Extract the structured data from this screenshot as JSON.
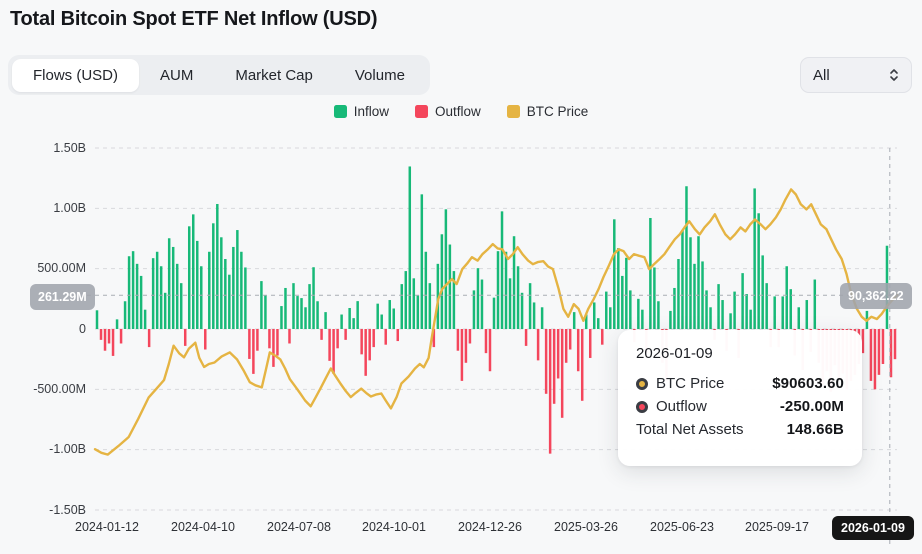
{
  "header": {
    "title": "Total Bitcoin Spot ETF Net Inflow (USD)"
  },
  "tabs": [
    {
      "label": "Flows (USD)",
      "active": true
    },
    {
      "label": "AUM",
      "active": false
    },
    {
      "label": "Market Cap",
      "active": false
    },
    {
      "label": "Volume",
      "active": false
    }
  ],
  "range_select": {
    "value": "All"
  },
  "legend": [
    {
      "label": "Inflow",
      "color": "#17b978"
    },
    {
      "label": "Outflow",
      "color": "#f4465c"
    },
    {
      "label": "BTC Price",
      "color": "#e5b443"
    }
  ],
  "crosshair_badges": {
    "flow_value": "261.29M",
    "price_value": "90,362.22"
  },
  "tooltip": {
    "date": "2026-01-09",
    "rows": [
      {
        "label": "BTC Price",
        "value": "$90603.60",
        "marker_color": "#e5b443"
      },
      {
        "label": "Outflow",
        "value": "-250.00M",
        "marker_color": "#f4465c"
      }
    ],
    "total_label": "Total Net Assets",
    "total_value": "148.66B"
  },
  "chart_data": {
    "type": "bar+line",
    "title": "Total Bitcoin Spot ETF Net Inflow (USD)",
    "legend_position": "top-center",
    "grid": "dashed-horizontal",
    "y_ticks": [
      "1.50B",
      "1.00B",
      "500.00M",
      "0",
      "-500.00M",
      "-1.00B",
      "-1.50B"
    ],
    "ylim_millions": [
      -1500,
      1500
    ],
    "x_ticks": [
      "2024-01-12",
      "2024-04-10",
      "2024-07-08",
      "2024-10-01",
      "2024-12-26",
      "2025-03-26",
      "2025-06-23",
      "2025-09-17",
      "2026-01-09"
    ],
    "bar_colors": {
      "inflow": "#17b978",
      "outflow": "#f4465c"
    },
    "flows_millions": [
      155,
      -90,
      -180,
      -120,
      -223,
      80,
      -120,
      230,
      603,
      645,
      540,
      440,
      160,
      -150,
      587,
      640,
      520,
      300,
      752,
      680,
      540,
      380,
      -140,
      851,
      950,
      730,
      520,
      -170,
      640,
      876,
      1036,
      760,
      580,
      450,
      680,
      820,
      640,
      510,
      -248,
      -372,
      -180,
      397,
      280,
      -160,
      -314,
      -220,
      190,
      340,
      -120,
      380,
      273,
      256,
      180,
      372,
      512,
      230,
      -90,
      140,
      -264,
      -372,
      -160,
      120,
      -90,
      174,
      90,
      231,
      -210,
      -388,
      -260,
      -150,
      210,
      120,
      -130,
      240,
      170,
      -100,
      372,
      480,
      1347,
      420,
      280,
      1116,
      640,
      380,
      -150,
      540,
      785,
      992,
      700,
      480,
      -180,
      -430,
      -280,
      -120,
      320,
      504,
      410,
      -200,
      -350,
      260,
      645,
      975,
      640,
      420,
      769,
      520,
      300,
      -140,
      380,
      220,
      -260,
      180,
      -537,
      -1033,
      -620,
      -410,
      -736,
      -280,
      -170,
      140,
      -350,
      -595,
      120,
      -240,
      220,
      90,
      -130,
      310,
      180,
      909,
      670,
      440,
      590,
      320,
      -110,
      250,
      160,
      -200,
      920,
      510,
      230,
      -280,
      -430,
      150,
      340,
      580,
      820,
      1183,
      760,
      540,
      769,
      560,
      320,
      180,
      -90,
      372,
      240,
      -180,
      130,
      310,
      -240,
      463,
      290,
      160,
      1165,
      959,
      610,
      380,
      -150,
      270,
      -150,
      270,
      520,
      330,
      -220,
      180,
      -340,
      240,
      -190,
      410,
      -280,
      -460,
      -350,
      -520,
      -300,
      -430,
      -370,
      -500,
      -430,
      -380,
      -290,
      -200,
      150,
      -430,
      -500,
      -380,
      -290,
      690,
      -400,
      -250
    ],
    "price_line": {
      "name": "BTC Price",
      "color": "#e5b443",
      "axis_range_usd": [
        20000,
        139000
      ],
      "last_value_usd": 90603.6,
      "points": [
        [
          0,
          40000
        ],
        [
          0.008,
          38800
        ],
        [
          0.016,
          38200
        ],
        [
          0.029,
          41000
        ],
        [
          0.042,
          44000
        ],
        [
          0.054,
          50000
        ],
        [
          0.067,
          57000
        ],
        [
          0.077,
          60000
        ],
        [
          0.086,
          62700
        ],
        [
          0.092,
          68000
        ],
        [
          0.098,
          74000
        ],
        [
          0.105,
          71500
        ],
        [
          0.111,
          70200
        ],
        [
          0.117,
          73000
        ],
        [
          0.125,
          75000
        ],
        [
          0.13,
          70000
        ],
        [
          0.136,
          67000
        ],
        [
          0.142,
          68000
        ],
        [
          0.149,
          68500
        ],
        [
          0.158,
          70500
        ],
        [
          0.168,
          71800
        ],
        [
          0.177,
          69500
        ],
        [
          0.185,
          66000
        ],
        [
          0.193,
          62000
        ],
        [
          0.2,
          61000
        ],
        [
          0.208,
          60300
        ],
        [
          0.213,
          66000
        ],
        [
          0.218,
          71800
        ],
        [
          0.226,
          70500
        ],
        [
          0.231,
          69500
        ],
        [
          0.237,
          66500
        ],
        [
          0.243,
          63000
        ],
        [
          0.25,
          60500
        ],
        [
          0.256,
          58300
        ],
        [
          0.262,
          56000
        ],
        [
          0.269,
          54100
        ],
        [
          0.275,
          57000
        ],
        [
          0.281,
          59900
        ],
        [
          0.288,
          63500
        ],
        [
          0.294,
          66500
        ],
        [
          0.3,
          64000
        ],
        [
          0.306,
          61600
        ],
        [
          0.313,
          59000
        ],
        [
          0.319,
          57100
        ],
        [
          0.325,
          58500
        ],
        [
          0.332,
          59900
        ],
        [
          0.338,
          58500
        ],
        [
          0.344,
          57300
        ],
        [
          0.351,
          58000
        ],
        [
          0.357,
          58300
        ],
        [
          0.363,
          55800
        ],
        [
          0.369,
          53400
        ],
        [
          0.376,
          57100
        ],
        [
          0.382,
          61600
        ],
        [
          0.391,
          63900
        ],
        [
          0.399,
          66500
        ],
        [
          0.405,
          68000
        ],
        [
          0.41,
          66900
        ],
        [
          0.416,
          70000
        ],
        [
          0.42,
          76700
        ],
        [
          0.424,
          83000
        ],
        [
          0.428,
          89400
        ],
        [
          0.433,
          92700
        ],
        [
          0.439,
          94300
        ],
        [
          0.445,
          95900
        ],
        [
          0.451,
          94300
        ],
        [
          0.458,
          99200
        ],
        [
          0.464,
          101000
        ],
        [
          0.47,
          103100
        ],
        [
          0.477,
          102000
        ],
        [
          0.483,
          104100
        ],
        [
          0.489,
          105500
        ],
        [
          0.496,
          107400
        ],
        [
          0.502,
          106000
        ],
        [
          0.508,
          105700
        ],
        [
          0.515,
          102500
        ],
        [
          0.521,
          104100
        ],
        [
          0.527,
          106400
        ],
        [
          0.533,
          104100
        ],
        [
          0.54,
          102000
        ],
        [
          0.546,
          100800
        ],
        [
          0.552,
          101500
        ],
        [
          0.559,
          101800
        ],
        [
          0.565,
          100000
        ],
        [
          0.571,
          99200
        ],
        [
          0.578,
          92700
        ],
        [
          0.584,
          86100
        ],
        [
          0.59,
          83500
        ],
        [
          0.597,
          87700
        ],
        [
          0.603,
          86100
        ],
        [
          0.609,
          82200
        ],
        [
          0.615,
          86100
        ],
        [
          0.622,
          89400
        ],
        [
          0.628,
          92700
        ],
        [
          0.634,
          96600
        ],
        [
          0.641,
          100500
        ],
        [
          0.647,
          104100
        ],
        [
          0.653,
          105700
        ],
        [
          0.659,
          105100
        ],
        [
          0.666,
          102500
        ],
        [
          0.672,
          104100
        ],
        [
          0.678,
          103600
        ],
        [
          0.685,
          103100
        ],
        [
          0.691,
          99200
        ],
        [
          0.697,
          100800
        ],
        [
          0.704,
          102500
        ],
        [
          0.71,
          104100
        ],
        [
          0.716,
          106400
        ],
        [
          0.723,
          109000
        ],
        [
          0.729,
          110600
        ],
        [
          0.735,
          112900
        ],
        [
          0.741,
          114900
        ],
        [
          0.748,
          112300
        ],
        [
          0.754,
          110600
        ],
        [
          0.76,
          112900
        ],
        [
          0.767,
          114900
        ],
        [
          0.773,
          117200
        ],
        [
          0.779,
          113900
        ],
        [
          0.786,
          110600
        ],
        [
          0.792,
          109000
        ],
        [
          0.798,
          110600
        ],
        [
          0.805,
          112900
        ],
        [
          0.811,
          111600
        ],
        [
          0.817,
          113900
        ],
        [
          0.823,
          115500
        ],
        [
          0.83,
          113900
        ],
        [
          0.836,
          112300
        ],
        [
          0.842,
          113900
        ],
        [
          0.849,
          116200
        ],
        [
          0.855,
          118800
        ],
        [
          0.861,
          122100
        ],
        [
          0.868,
          125400
        ],
        [
          0.874,
          123700
        ],
        [
          0.88,
          120500
        ],
        [
          0.887,
          118800
        ],
        [
          0.893,
          120500
        ],
        [
          0.899,
          117200
        ],
        [
          0.905,
          113900
        ],
        [
          0.912,
          112300
        ],
        [
          0.918,
          109000
        ],
        [
          0.924,
          105700
        ],
        [
          0.931,
          102500
        ],
        [
          0.937,
          97600
        ],
        [
          0.943,
          91000
        ],
        [
          0.95,
          86100
        ],
        [
          0.956,
          83500
        ],
        [
          0.962,
          82200
        ],
        [
          0.968,
          83500
        ],
        [
          0.975,
          82800
        ],
        [
          0.981,
          84500
        ],
        [
          0.987,
          86800
        ],
        [
          0.993,
          88700
        ],
        [
          1,
          90604
        ]
      ]
    },
    "crosshair": {
      "x_fraction": 0.991,
      "flow_axis_value": "261.29M",
      "price_axis_value": "90,362.22",
      "date": "2026-01-09"
    }
  }
}
